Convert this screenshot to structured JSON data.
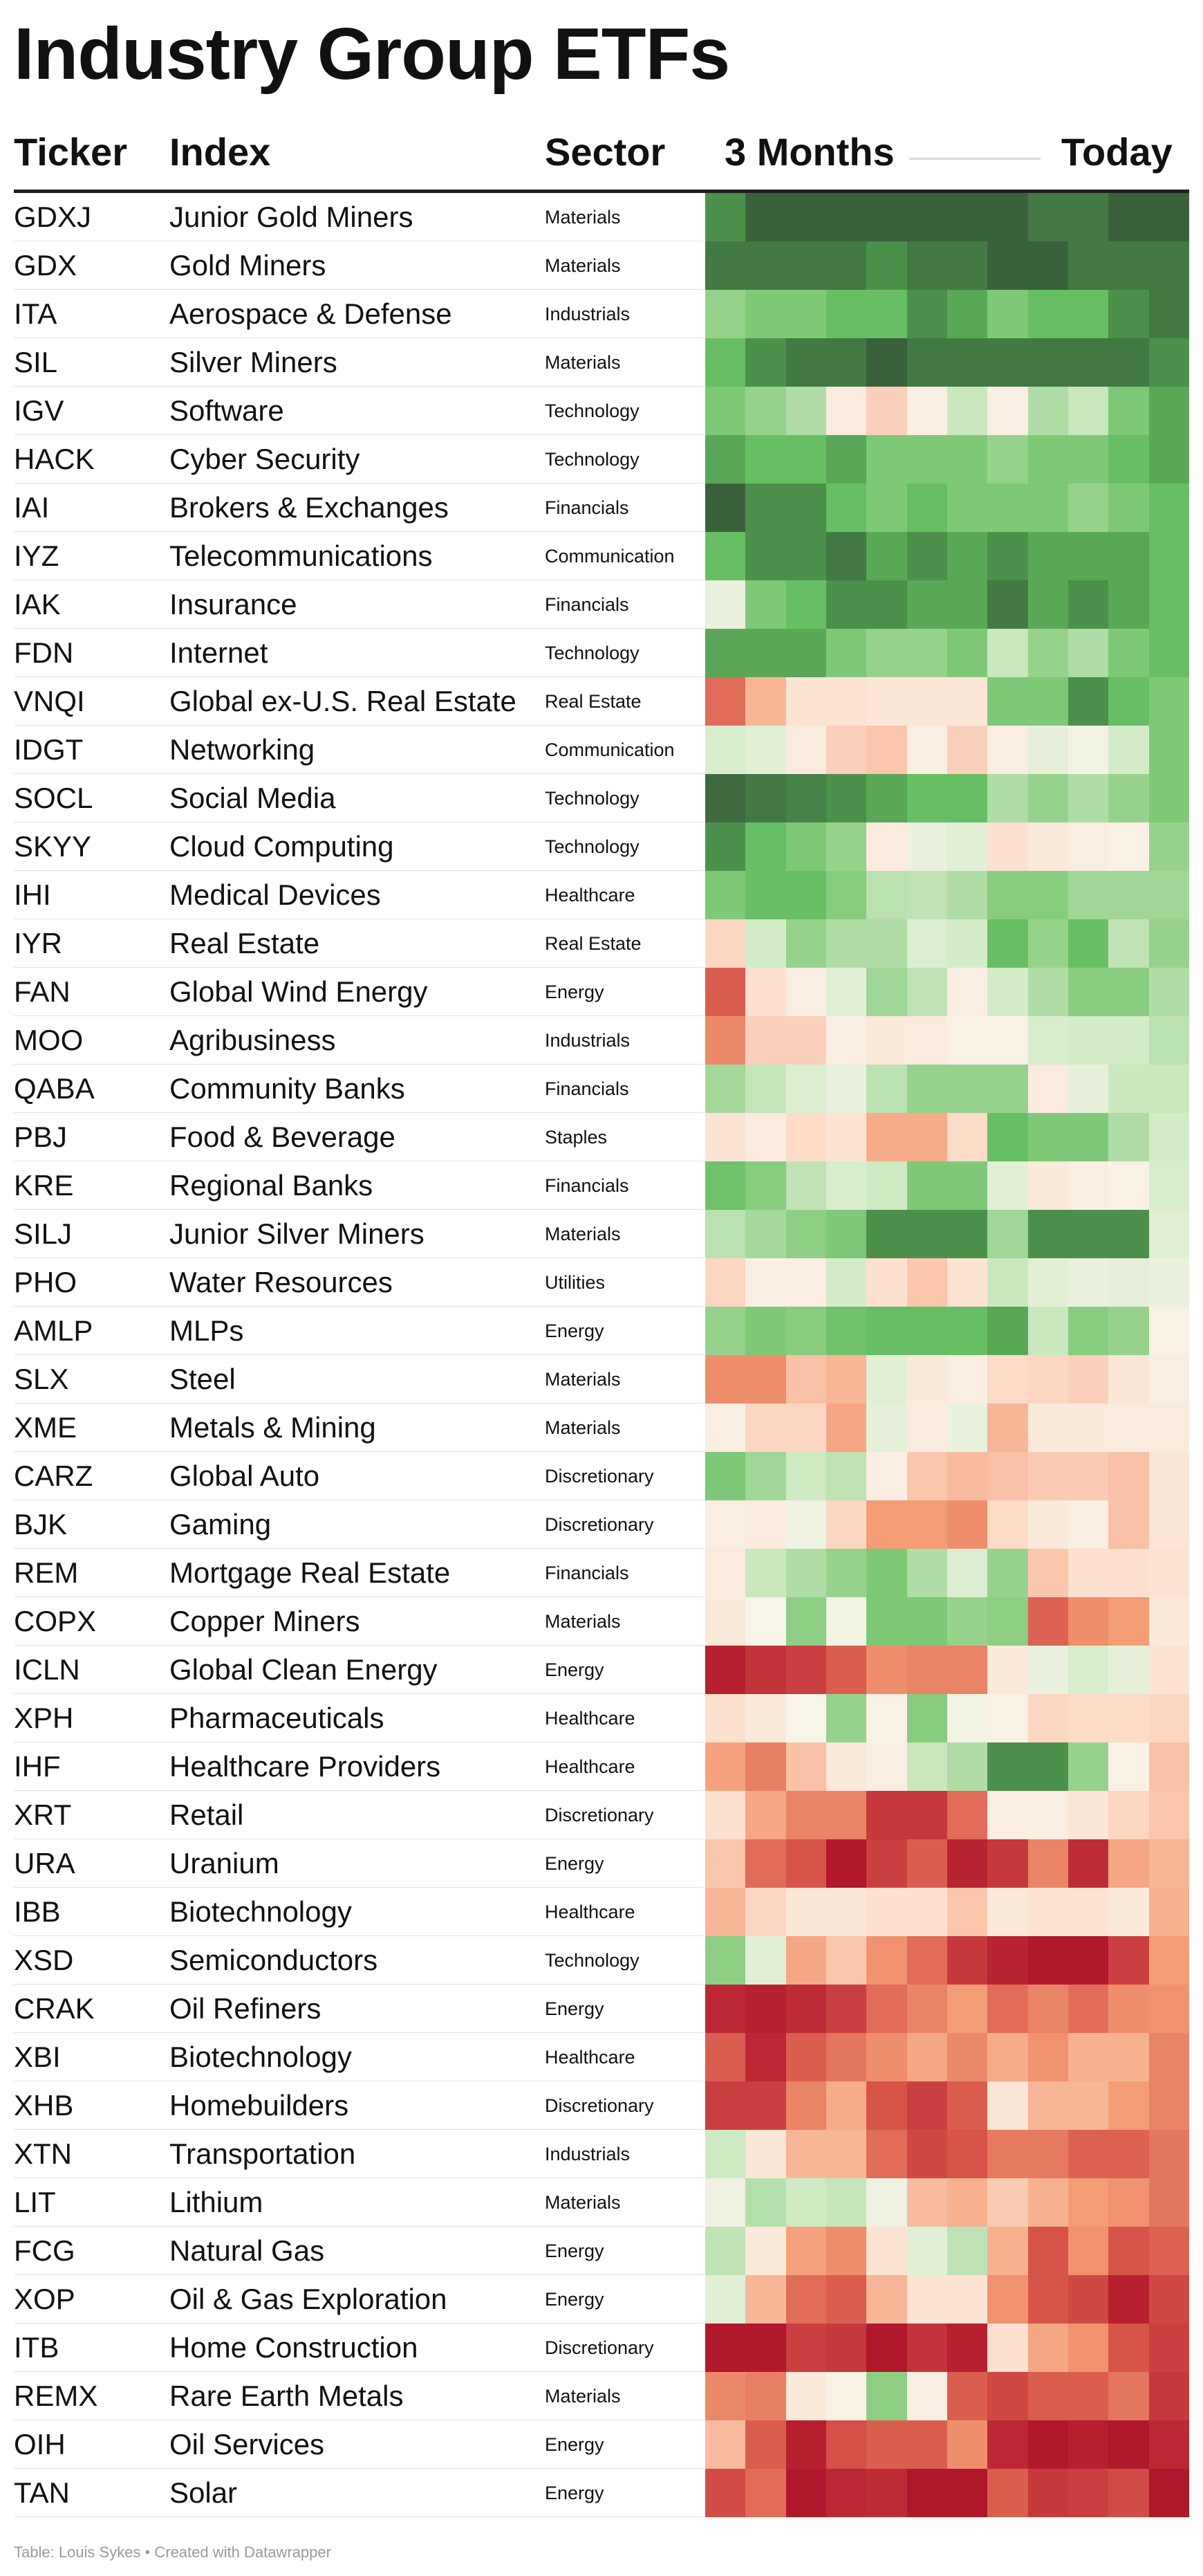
{
  "title": "Industry Group ETFs",
  "header": {
    "ticker": "Ticker",
    "index": "Index",
    "sector": "Sector",
    "period_start": "3 Months",
    "period_end": "Today"
  },
  "footer": "Table: Louis Sykes • Created with Datawrapper",
  "chart_data": {
    "type": "heatmap",
    "columns": [
      "Ticker",
      "Index",
      "Sector",
      "3 Months",
      "Today"
    ],
    "heat_columns": 12,
    "scale": "relative strength from -5 (deep red) to +5 (deep green)",
    "rows": [
      {
        "ticker": "GDXJ",
        "index": "Junior Gold Miners",
        "sector": "Materials",
        "values": [
          4,
          5,
          5,
          5,
          5,
          5,
          5,
          5,
          4.5,
          4.5,
          5,
          5
        ]
      },
      {
        "ticker": "GDX",
        "index": "Gold Miners",
        "sector": "Materials",
        "values": [
          4.5,
          4.5,
          4.5,
          4.5,
          4,
          4.5,
          4.5,
          5,
          5,
          4.5,
          4.5,
          4.5
        ]
      },
      {
        "ticker": "ITA",
        "index": "Aerospace & Defense",
        "sector": "Industrials",
        "values": [
          2,
          2.5,
          2.5,
          3,
          3,
          4,
          3.5,
          2.5,
          3,
          3,
          4,
          4.5
        ]
      },
      {
        "ticker": "SIL",
        "index": "Silver Miners",
        "sector": "Materials",
        "values": [
          3,
          4,
          4.5,
          4.5,
          5,
          4.5,
          4.5,
          4.5,
          4.5,
          4.5,
          4.5,
          4
        ]
      },
      {
        "ticker": "IGV",
        "index": "Software",
        "sector": "Technology",
        "values": [
          2.5,
          2,
          1.5,
          -0.3,
          -1,
          -0.2,
          1,
          -0.2,
          1.5,
          1,
          2.5,
          3.5
        ]
      },
      {
        "ticker": "HACK",
        "index": "Cyber Security",
        "sector": "Technology",
        "values": [
          3.5,
          3,
          3,
          3.5,
          2.5,
          2.5,
          2.5,
          2,
          2.5,
          2.5,
          3,
          3.5
        ]
      },
      {
        "ticker": "IAI",
        "index": "Brokers & Exchanges",
        "sector": "Financials",
        "values": [
          5,
          4,
          4,
          3,
          2.5,
          3,
          2.5,
          2.5,
          2.5,
          2,
          2.5,
          3
        ]
      },
      {
        "ticker": "IYZ",
        "index": "Telecommunications",
        "sector": "Communication",
        "values": [
          3,
          4,
          4,
          4.5,
          3.5,
          4,
          3.5,
          4,
          3.5,
          3.5,
          3.5,
          3
        ]
      },
      {
        "ticker": "IAK",
        "index": "Insurance",
        "sector": "Financials",
        "values": [
          0.3,
          2.5,
          3,
          4,
          4,
          3.5,
          3.5,
          4.5,
          3.5,
          4,
          3.5,
          3
        ]
      },
      {
        "ticker": "FDN",
        "index": "Internet",
        "sector": "Technology",
        "values": [
          3.5,
          3.5,
          3.5,
          2.5,
          2,
          2,
          2.5,
          1,
          2,
          1.5,
          2.5,
          3
        ]
      },
      {
        "ticker": "VNQI",
        "index": "Global ex-U.S. Real Estate",
        "sector": "Real Estate",
        "values": [
          -3,
          -1.5,
          -0.6,
          -0.6,
          -0.5,
          -0.5,
          -0.5,
          2.5,
          2.5,
          4,
          3,
          2.5
        ]
      },
      {
        "ticker": "IDGT",
        "index": "Networking",
        "sector": "Communication",
        "values": [
          0.7,
          0.5,
          -0.3,
          -1,
          -1.2,
          -0.2,
          -1,
          -0.2,
          0.4,
          0.1,
          0.8,
          2.5
        ]
      },
      {
        "ticker": "SOCL",
        "index": "Social Media",
        "sector": "Technology",
        "values": [
          4.8,
          4.5,
          4.3,
          4,
          3.5,
          3,
          3,
          1.5,
          2,
          1.5,
          2,
          2.5
        ]
      },
      {
        "ticker": "SKYY",
        "index": "Cloud Computing",
        "sector": "Technology",
        "values": [
          4,
          3,
          2.5,
          2,
          -0.3,
          0.3,
          0.5,
          -0.7,
          -0.4,
          -0.2,
          -0.1,
          2
        ]
      },
      {
        "ticker": "IHI",
        "index": "Medical Devices",
        "sector": "Healthcare",
        "values": [
          2.5,
          3,
          3,
          2.3,
          1.3,
          1.2,
          1.5,
          2.3,
          2.3,
          1.8,
          1.8,
          1.8
        ]
      },
      {
        "ticker": "IYR",
        "index": "Real Estate",
        "sector": "Real Estate",
        "values": [
          -0.9,
          0.8,
          2,
          1.5,
          1.5,
          0.6,
          0.8,
          3,
          2,
          3,
          1.2,
          2
        ]
      },
      {
        "ticker": "FAN",
        "index": "Global Wind Energy",
        "sector": "Energy",
        "values": [
          -3.3,
          -0.7,
          -0.2,
          0.5,
          1.8,
          1.2,
          -0.2,
          0.8,
          1.5,
          2.3,
          2.3,
          1.5
        ]
      },
      {
        "ticker": "MOO",
        "index": "Agribusiness",
        "sector": "Industrials",
        "values": [
          -2.4,
          -1,
          -1,
          -0.2,
          -0.4,
          -0.3,
          -0.1,
          -0.1,
          0.7,
          0.8,
          0.8,
          1.3
        ]
      },
      {
        "ticker": "QABA",
        "index": "Community Banks",
        "sector": "Financials",
        "values": [
          1.7,
          1.1,
          0.6,
          0.3,
          1.3,
          2,
          2,
          2,
          -0.3,
          0.4,
          1,
          1
        ]
      },
      {
        "ticker": "PBJ",
        "index": "Food & Beverage",
        "sector": "Staples",
        "values": [
          -0.6,
          -0.3,
          -0.8,
          -0.6,
          -1.7,
          -1.7,
          -0.8,
          3,
          2.5,
          2.5,
          1.5,
          0.8
        ]
      },
      {
        "ticker": "KRE",
        "index": "Regional Banks",
        "sector": "Financials",
        "values": [
          2.8,
          2.3,
          1.2,
          0.7,
          0.9,
          2.5,
          2.5,
          0.5,
          -0.4,
          -0.2,
          -0.1,
          0.7
        ]
      },
      {
        "ticker": "SILJ",
        "index": "Junior Silver Miners",
        "sector": "Materials",
        "values": [
          1.3,
          1.7,
          2.2,
          2.5,
          4,
          4,
          4,
          1.8,
          4,
          4,
          4,
          0.5
        ]
      },
      {
        "ticker": "PHO",
        "index": "Water Resources",
        "sector": "Utilities",
        "values": [
          -0.9,
          -0.2,
          -0.2,
          0.8,
          -0.7,
          -1.2,
          -0.6,
          1,
          0.5,
          0.3,
          0.4,
          0.3
        ]
      },
      {
        "ticker": "AMLP",
        "index": "MLPs",
        "sector": "Energy",
        "values": [
          2,
          2.5,
          2.3,
          2.8,
          3,
          3,
          3,
          3.5,
          1,
          2.3,
          2,
          -0.1
        ]
      },
      {
        "ticker": "SLX",
        "index": "Steel",
        "sector": "Materials",
        "values": [
          -2.3,
          -2.3,
          -1.3,
          -1.5,
          0.5,
          -0.4,
          -0.2,
          -0.8,
          -0.9,
          -1,
          -0.5,
          -0.2
        ]
      },
      {
        "ticker": "XME",
        "index": "Metals & Mining",
        "sector": "Materials",
        "values": [
          -0.2,
          -0.9,
          -0.9,
          -1.8,
          0.4,
          -0.3,
          0.3,
          -1.5,
          -0.4,
          -0.4,
          -0.3,
          -0.3
        ]
      },
      {
        "ticker": "CARZ",
        "index": "Global Auto",
        "sector": "Discretionary",
        "values": [
          2.5,
          1.8,
          0.9,
          1.2,
          -0.2,
          -1.2,
          -1.4,
          -1.3,
          -1.1,
          -1.1,
          -1.3,
          -0.5
        ]
      },
      {
        "ticker": "BJK",
        "index": "Gaming",
        "sector": "Discretionary",
        "values": [
          -0.2,
          -0.3,
          0.2,
          -0.9,
          -2,
          -2,
          -2.3,
          -0.8,
          -0.4,
          -0.2,
          -1.3,
          -0.5
        ]
      },
      {
        "ticker": "REM",
        "index": "Mortgage Real Estate",
        "sector": "Financials",
        "values": [
          -0.3,
          1,
          1.5,
          2,
          2.5,
          1.5,
          0.6,
          2,
          -1.2,
          -0.7,
          -0.7,
          -0.6
        ]
      },
      {
        "ticker": "COPX",
        "index": "Copper Miners",
        "sector": "Materials",
        "values": [
          -0.4,
          0,
          2.2,
          0.1,
          2.5,
          2.5,
          2,
          2.2,
          -3.2,
          -2.3,
          -2,
          -0.4
        ]
      },
      {
        "ticker": "ICLN",
        "index": "Global Clean Energy",
        "sector": "Energy",
        "values": [
          -4.8,
          -4.3,
          -4,
          -3.3,
          -2.3,
          -2.5,
          -2.5,
          -0.4,
          0.3,
          0.7,
          0.4,
          -0.6
        ]
      },
      {
        "ticker": "XPH",
        "index": "Pharmaceuticals",
        "sector": "Healthcare",
        "values": [
          -0.7,
          -0.4,
          0,
          2,
          -0.1,
          2.3,
          0.1,
          -0.1,
          -0.9,
          -0.8,
          -0.8,
          -0.9
        ]
      },
      {
        "ticker": "IHF",
        "index": "Healthcare Providers",
        "sector": "Healthcare",
        "values": [
          -1.9,
          -2.6,
          -1.3,
          -0.4,
          -0.2,
          1,
          1.5,
          4,
          4,
          2,
          -0.1,
          -1.3
        ]
      },
      {
        "ticker": "XRT",
        "index": "Retail",
        "sector": "Discretionary",
        "values": [
          -0.7,
          -1.8,
          -2.5,
          -2.5,
          -4.2,
          -4.2,
          -3,
          -0.2,
          -0.2,
          -0.5,
          -0.9,
          -1.2
        ]
      },
      {
        "ticker": "URA",
        "index": "Uranium",
        "sector": "Energy",
        "values": [
          -1.2,
          -3,
          -3.5,
          -5,
          -4,
          -3.3,
          -4.7,
          -4.2,
          -2.5,
          -4.5,
          -1.8,
          -1.5
        ]
      },
      {
        "ticker": "IBB",
        "index": "Biotechnology",
        "sector": "Healthcare",
        "values": [
          -1.5,
          -0.9,
          -0.5,
          -0.5,
          -0.7,
          -0.7,
          -1.2,
          -0.4,
          -0.6,
          -0.6,
          -0.4,
          -1.6
        ]
      },
      {
        "ticker": "XSD",
        "index": "Semiconductors",
        "sector": "Technology",
        "values": [
          2.2,
          0.5,
          -1.8,
          -1.2,
          -2.2,
          -3,
          -4.2,
          -4.7,
          -5,
          -5,
          -4,
          -2
        ]
      },
      {
        "ticker": "CRAK",
        "index": "Oil Refiners",
        "sector": "Energy",
        "values": [
          -4.6,
          -4.8,
          -4.5,
          -4,
          -3,
          -2.5,
          -2,
          -3,
          -2.5,
          -3,
          -2.3,
          -2.2
        ]
      },
      {
        "ticker": "XBI",
        "index": "Biotechnology",
        "sector": "Healthcare",
        "values": [
          -3.3,
          -4.6,
          -3.3,
          -2.8,
          -2.3,
          -1.8,
          -2.4,
          -1.7,
          -2.2,
          -1.6,
          -1.6,
          -2.5
        ]
      },
      {
        "ticker": "XHB",
        "index": "Homebuilders",
        "sector": "Discretionary",
        "values": [
          -4,
          -4,
          -2.5,
          -1.7,
          -3.5,
          -4,
          -3.3,
          -0.5,
          -1.5,
          -1.5,
          -2,
          -2.5
        ]
      },
      {
        "ticker": "XTN",
        "index": "Transportation",
        "sector": "Industrials",
        "values": [
          0.9,
          -0.5,
          -1.5,
          -1.5,
          -3,
          -3.8,
          -3.5,
          -2.7,
          -2.7,
          -3.2,
          -3.2,
          -2.8
        ]
      },
      {
        "ticker": "LIT",
        "index": "Lithium",
        "sector": "Materials",
        "values": [
          0.2,
          1.4,
          0.9,
          1.1,
          0.2,
          -1.4,
          -1.6,
          -1.1,
          -1.6,
          -2,
          -2.2,
          -2.8
        ]
      },
      {
        "ticker": "FCG",
        "index": "Natural Gas",
        "sector": "Energy",
        "values": [
          1.2,
          -0.4,
          -1.9,
          -2.3,
          -0.6,
          0.5,
          1.2,
          -1.6,
          -3.5,
          -2.2,
          -3.5,
          -3.2
        ]
      },
      {
        "ticker": "XOP",
        "index": "Oil & Gas Exploration",
        "sector": "Energy",
        "values": [
          0.5,
          -1.5,
          -3,
          -3.3,
          -1.5,
          -0.6,
          -0.6,
          -2.2,
          -3.5,
          -3.8,
          -4.8,
          -3.8
        ]
      },
      {
        "ticker": "ITB",
        "index": "Home Construction",
        "sector": "Discretionary",
        "values": [
          -5,
          -5,
          -4,
          -4.2,
          -5,
          -4.3,
          -4.8,
          -0.7,
          -1.8,
          -2.2,
          -3.5,
          -4
        ]
      },
      {
        "ticker": "REMX",
        "index": "Rare Earth Metals",
        "sector": "Materials",
        "values": [
          -2.4,
          -2.6,
          -0.4,
          -0.1,
          2.2,
          -0.2,
          -3.3,
          -3.8,
          -3.3,
          -3.3,
          -2.8,
          -4.2
        ]
      },
      {
        "ticker": "OIH",
        "index": "Oil Services",
        "sector": "Energy",
        "values": [
          -1.4,
          -3.3,
          -4.8,
          -3.6,
          -3.3,
          -3.3,
          -2.3,
          -4.6,
          -5,
          -4.8,
          -5,
          -4.6
        ]
      },
      {
        "ticker": "TAN",
        "index": "Solar",
        "sector": "Energy",
        "values": [
          -3.7,
          -3,
          -5,
          -4.6,
          -4.5,
          -5,
          -5,
          -3.3,
          -4.2,
          -4,
          -3.7,
          -5
        ]
      }
    ]
  }
}
